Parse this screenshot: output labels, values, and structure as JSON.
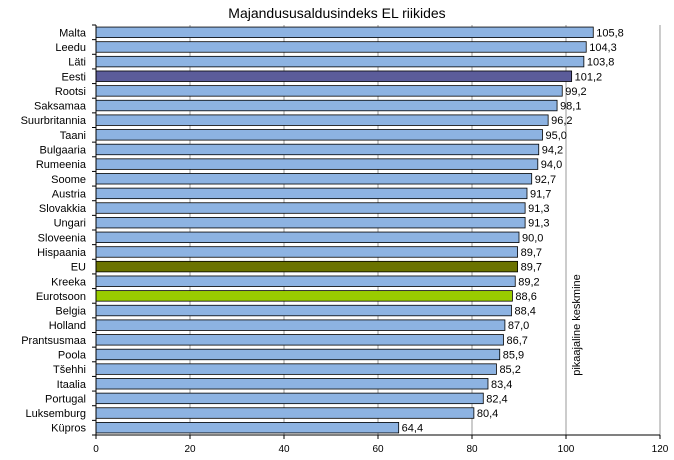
{
  "chart_data": {
    "type": "bar",
    "orientation": "horizontal",
    "title": "Majandususaldusindeks EL riikides",
    "categories": [
      "Malta",
      "Leedu",
      "Läti",
      "Eesti",
      "Rootsi",
      "Saksamaa",
      "Suurbritannia",
      "Taani",
      "Bulgaaria",
      "Rumeenia",
      "Soome",
      "Austria",
      "Slovakkia",
      "Ungari",
      "Sloveenia",
      "Hispaania",
      "EU",
      "Kreeka",
      "Eurotsoon",
      "Belgia",
      "Holland",
      "Prantsusmaa",
      "Poola",
      "Tšehhi",
      "Itaalia",
      "Portugal",
      "Luksemburg",
      "Küpros"
    ],
    "values": [
      105.8,
      104.3,
      103.8,
      101.2,
      99.2,
      98.1,
      96.2,
      95.0,
      94.2,
      94.0,
      92.7,
      91.7,
      91.3,
      91.3,
      90.0,
      89.7,
      89.7,
      89.2,
      88.6,
      88.4,
      87.0,
      86.7,
      85.9,
      85.2,
      83.4,
      82.4,
      80.4,
      64.4
    ],
    "value_labels": [
      "105,8",
      "104,3",
      "103,8",
      "101,2",
      "99,2",
      "98,1",
      "96,2",
      "95,0",
      "94,2",
      "94,0",
      "92,7",
      "91,7",
      "91,3",
      "91,3",
      "90,0",
      "89,7",
      "89,7",
      "89,2",
      "88,6",
      "88,4",
      "87,0",
      "86,7",
      "85,9",
      "85,2",
      "83,4",
      "82,4",
      "80,4",
      "64,4"
    ],
    "xlim": [
      0,
      120
    ],
    "x_ticks": [
      0,
      20,
      40,
      60,
      80,
      100,
      120
    ],
    "grid": "vertical",
    "legend": "none",
    "reference_line": {
      "value": 100,
      "label": "pikaajaline keskmine"
    },
    "colors": {
      "default": "#8db3e2",
      "Eesti": "#5b5c9a",
      "EU": "#6b7300",
      "Eurotsoon": "#99cc00"
    }
  }
}
